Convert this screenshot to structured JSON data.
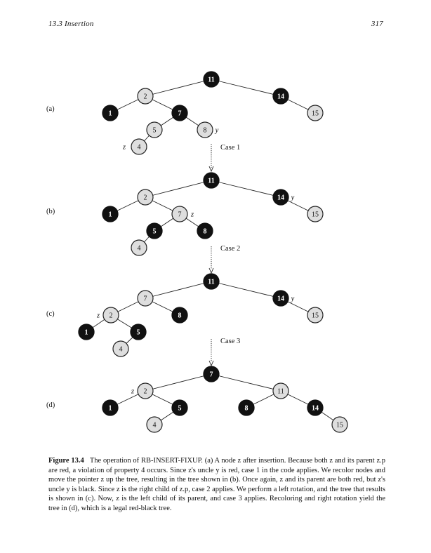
{
  "header": {
    "section": "13.3   Insertion",
    "page_number": "317"
  },
  "panels": [
    {
      "label": "(a)",
      "nodes": [
        {
          "key": "11",
          "color": "black"
        },
        {
          "key": "2",
          "color": "red"
        },
        {
          "key": "14",
          "color": "black"
        },
        {
          "key": "1",
          "color": "black"
        },
        {
          "key": "7",
          "color": "black"
        },
        {
          "key": "15",
          "color": "red"
        },
        {
          "key": "5",
          "color": "red"
        },
        {
          "key": "8",
          "color": "red",
          "tag": "y"
        },
        {
          "key": "4",
          "color": "red",
          "tag": "z"
        }
      ],
      "edges": [
        [
          "11",
          "2"
        ],
        [
          "11",
          "14"
        ],
        [
          "2",
          "1"
        ],
        [
          "2",
          "7"
        ],
        [
          "14",
          "15"
        ],
        [
          "7",
          "5"
        ],
        [
          "7",
          "8"
        ],
        [
          "5",
          "4"
        ]
      ],
      "case_after": "Case 1"
    },
    {
      "label": "(b)",
      "nodes": [
        {
          "key": "11",
          "color": "black"
        },
        {
          "key": "2",
          "color": "red"
        },
        {
          "key": "14",
          "color": "black",
          "tag": "y"
        },
        {
          "key": "1",
          "color": "black"
        },
        {
          "key": "7",
          "color": "red",
          "tag": "z"
        },
        {
          "key": "15",
          "color": "red"
        },
        {
          "key": "5",
          "color": "black"
        },
        {
          "key": "8",
          "color": "black"
        },
        {
          "key": "4",
          "color": "red"
        }
      ],
      "edges": [
        [
          "11",
          "2"
        ],
        [
          "11",
          "14"
        ],
        [
          "2",
          "1"
        ],
        [
          "2",
          "7"
        ],
        [
          "14",
          "15"
        ],
        [
          "7",
          "5"
        ],
        [
          "7",
          "8"
        ],
        [
          "5",
          "4"
        ]
      ],
      "case_after": "Case 2"
    },
    {
      "label": "(c)",
      "nodes": [
        {
          "key": "11",
          "color": "black"
        },
        {
          "key": "7",
          "color": "red"
        },
        {
          "key": "14",
          "color": "black",
          "tag": "y"
        },
        {
          "key": "2",
          "color": "red",
          "tag": "z"
        },
        {
          "key": "8",
          "color": "black"
        },
        {
          "key": "15",
          "color": "red"
        },
        {
          "key": "1",
          "color": "black"
        },
        {
          "key": "5",
          "color": "black"
        },
        {
          "key": "4",
          "color": "red"
        }
      ],
      "edges": [
        [
          "11",
          "7"
        ],
        [
          "11",
          "14"
        ],
        [
          "7",
          "2"
        ],
        [
          "7",
          "8"
        ],
        [
          "14",
          "15"
        ],
        [
          "2",
          "1"
        ],
        [
          "2",
          "5"
        ],
        [
          "5",
          "4"
        ]
      ],
      "case_after": "Case 3"
    },
    {
      "label": "(d)",
      "nodes": [
        {
          "key": "7",
          "color": "black"
        },
        {
          "key": "2",
          "color": "red",
          "tag": "z"
        },
        {
          "key": "11",
          "color": "red"
        },
        {
          "key": "1",
          "color": "black"
        },
        {
          "key": "5",
          "color": "black"
        },
        {
          "key": "8",
          "color": "black"
        },
        {
          "key": "14",
          "color": "black"
        },
        {
          "key": "4",
          "color": "red"
        },
        {
          "key": "15",
          "color": "red"
        }
      ],
      "edges": [
        [
          "7",
          "2"
        ],
        [
          "7",
          "11"
        ],
        [
          "2",
          "1"
        ],
        [
          "2",
          "5"
        ],
        [
          "11",
          "8"
        ],
        [
          "11",
          "14"
        ],
        [
          "5",
          "4"
        ],
        [
          "14",
          "15"
        ]
      ]
    }
  ],
  "caption": {
    "label": "Figure 13.4",
    "text": "The operation of RB-INSERT-FIXUP. (a) A node z after insertion. Because both z and its parent z.p are red, a violation of property 4 occurs. Since z's uncle y is red, case 1 in the code applies. We recolor nodes and move the pointer z up the tree, resulting in the tree shown in (b). Once again, z and its parent are both red, but z's uncle y is black. Since z is the right child of z.p, case 2 applies. We perform a left rotation, and the tree that results is shown in (c). Now, z is the left child of its parent, and case 3 applies. Recoloring and right rotation yield the tree in (d), which is a legal red-black tree."
  },
  "colors": {
    "black_node": "#111111",
    "red_node": "#dedede",
    "ink": "#111111"
  }
}
